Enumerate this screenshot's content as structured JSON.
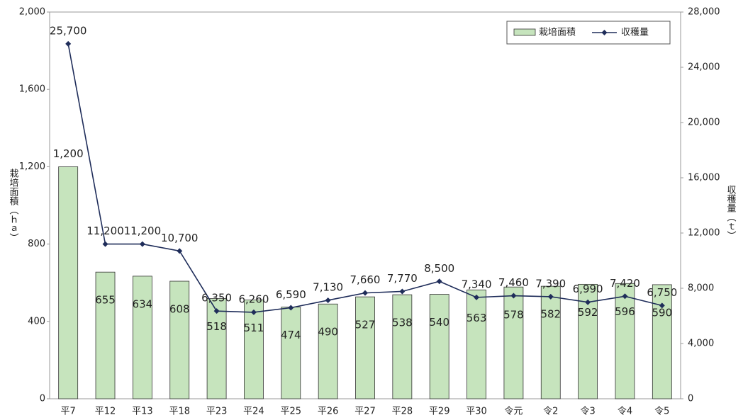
{
  "chart_data": {
    "type": "bar-line",
    "categories": [
      "平7",
      "平12",
      "平13",
      "平18",
      "平23",
      "平24",
      "平25",
      "平26",
      "平27",
      "平28",
      "平29",
      "平30",
      "令元",
      "令2",
      "令3",
      "令4",
      "令5"
    ],
    "series": [
      {
        "name": "栽培面積",
        "color": "#c6e4bd",
        "axis": "y",
        "values": [
          1200,
          655,
          634,
          608,
          518,
          511,
          474,
          490,
          527,
          538,
          540,
          563,
          578,
          582,
          592,
          596,
          590
        ],
        "value_labels": [
          "1,200",
          "655",
          "634",
          "608",
          "518",
          "511",
          "474",
          "490",
          "527",
          "538",
          "540",
          "563",
          "578",
          "582",
          "592",
          "596",
          "590"
        ]
      },
      {
        "name": "収穫量",
        "color": "#1f2d5a",
        "axis": "y2",
        "values": [
          25700,
          11200,
          11200,
          10700,
          6350,
          6260,
          6590,
          7130,
          7660,
          7770,
          8500,
          7340,
          7460,
          7390,
          6990,
          7420,
          6750
        ],
        "value_labels": [
          "25,700",
          "11,200",
          "11,200",
          "10,700",
          "6,350",
          "6,260",
          "6,590",
          "7,130",
          "7,660",
          "7,770",
          "8,500",
          "7,340",
          "7,460",
          "7,390",
          "6,990",
          "7,420",
          "6,750"
        ]
      }
    ],
    "y_label": "栽培面積（ｈａ）",
    "y2_label": "収穫量（ｔ）",
    "ylim": [
      0,
      2000
    ],
    "yticks": [
      0,
      400,
      800,
      {
        "value": 1200,
        "label": "1,200"
      },
      {
        "value": 1600,
        "label": "1,600"
      },
      {
        "value": 2000,
        "label": "2,000"
      }
    ],
    "y2lim": [
      0,
      28000
    ],
    "y2ticks": [
      0,
      {
        "value": 4000,
        "label": "4,000"
      },
      {
        "value": 8000,
        "label": "8,000"
      },
      {
        "value": 12000,
        "label": "12,000"
      },
      {
        "value": 16000,
        "label": "16,000"
      },
      {
        "value": 20000,
        "label": "20,000"
      },
      {
        "value": 24000,
        "label": "24,000"
      },
      {
        "value": 28000,
        "label": "28,000"
      }
    ],
    "legend": "top-right"
  }
}
